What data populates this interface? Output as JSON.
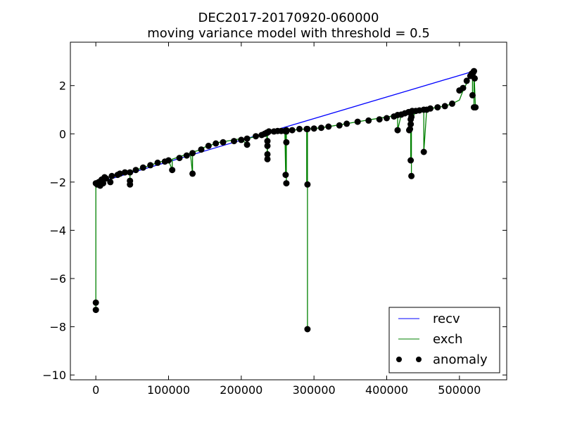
{
  "chart_data": {
    "type": "line",
    "title": "DEC2017-20170920-060000",
    "subtitle": "moving variance model with threshold = 0.5",
    "xlim": [
      -35000,
      565000
    ],
    "ylim": [
      -10.2,
      3.8
    ],
    "x_ticks": [
      0,
      100000,
      200000,
      300000,
      400000,
      500000
    ],
    "x_tick_labels": [
      "0",
      "100000",
      "200000",
      "300000",
      "400000",
      "500000"
    ],
    "y_ticks": [
      2,
      0,
      -2,
      -4,
      -6,
      -8,
      -10
    ],
    "y_tick_labels": [
      "2",
      "0",
      "−2",
      "−4",
      "−6",
      "−8",
      "−10"
    ],
    "grid": false,
    "legend_position": "lower-right",
    "series": [
      {
        "name": "recv",
        "style": "line",
        "color": "#0000ff",
        "x": [
          0,
          520000
        ],
        "y": [
          -2.05,
          2.6
        ]
      },
      {
        "name": "exch",
        "style": "line",
        "color": "#008000",
        "x": [
          0,
          0,
          0,
          0,
          5000,
          5000,
          10000,
          10000,
          15000,
          18000,
          20000,
          20000,
          25000,
          30000,
          35000,
          40000,
          47000,
          47000,
          47000,
          50000,
          60000,
          70000,
          80000,
          90000,
          100000,
          105000,
          105000,
          110000,
          120000,
          130000,
          133000,
          133000,
          140000,
          150000,
          160000,
          170000,
          180000,
          190000,
          200000,
          208000,
          208000,
          215000,
          225000,
          230000,
          235000,
          236000,
          236000,
          236000,
          240000,
          250000,
          255000,
          260000,
          261000,
          261000,
          262000,
          262000,
          262000,
          270000,
          280000,
          290000,
          290000,
          290000,
          291000,
          291000,
          291000,
          300000,
          310000,
          320000,
          330000,
          340000,
          350000,
          360000,
          370000,
          380000,
          390000,
          400000,
          410000,
          415000,
          415000,
          420000,
          425000,
          430000,
          431000,
          431000,
          433000,
          433000,
          433000,
          434000,
          434000,
          434000,
          435000,
          435000,
          440000,
          450000,
          451000,
          451000,
          455000,
          460000,
          470000,
          480000,
          490000,
          500000,
          505000,
          510000,
          515000,
          518000,
          518000,
          518000,
          520000,
          520000,
          520000,
          522000
        ],
        "y": [
          -2.05,
          -7.3,
          -7.0,
          -2.05,
          -2.0,
          -2.1,
          -1.9,
          -2.1,
          -1.85,
          -1.9,
          -2.0,
          -1.75,
          -1.7,
          -1.7,
          -1.65,
          -1.6,
          -1.6,
          -2.1,
          -1.6,
          -1.55,
          -1.45,
          -1.35,
          -1.25,
          -1.15,
          -1.1,
          -1.5,
          -1.05,
          -1.0,
          -0.9,
          -0.8,
          -1.65,
          -0.75,
          -0.7,
          -0.55,
          -0.45,
          -0.35,
          -0.3,
          -0.25,
          -0.2,
          -0.45,
          -0.2,
          -0.15,
          -0.05,
          0.0,
          0.05,
          -1.05,
          -0.85,
          0.05,
          0.1,
          0.1,
          0.12,
          0.12,
          -1.7,
          0.12,
          -2.05,
          -0.35,
          0.12,
          0.15,
          0.18,
          0.2,
          -2.1,
          0.2,
          0.2,
          -8.1,
          0.2,
          0.22,
          0.25,
          0.3,
          0.35,
          0.4,
          0.45,
          0.5,
          0.55,
          0.6,
          0.65,
          0.7,
          0.75,
          0.8,
          0.15,
          0.8,
          0.85,
          0.9,
          0.9,
          0.15,
          0.9,
          -1.1,
          0.9,
          0.9,
          -1.75,
          0.9,
          0.92,
          0.6,
          0.95,
          1.0,
          1.0,
          -0.75,
          1.0,
          1.05,
          1.1,
          1.15,
          1.25,
          1.4,
          1.8,
          2.1,
          2.4,
          2.5,
          1.6,
          2.5,
          2.6,
          1.1,
          2.6,
          1.1
        ]
      },
      {
        "name": "anomaly",
        "style": "markers",
        "color": "#000000",
        "x": [
          0,
          0,
          0,
          2000,
          4000,
          6000,
          8000,
          10000,
          12000,
          14000,
          20000,
          22000,
          30000,
          33000,
          40000,
          47000,
          47000,
          47000,
          55000,
          65000,
          75000,
          85000,
          95000,
          100000,
          105000,
          115000,
          125000,
          133000,
          133000,
          145000,
          155000,
          165000,
          175000,
          190000,
          200000,
          208000,
          208000,
          220000,
          228000,
          232000,
          235000,
          236000,
          236000,
          236000,
          236000,
          236000,
          238000,
          245000,
          250000,
          255000,
          260000,
          261000,
          261000,
          262000,
          262000,
          262000,
          262000,
          270000,
          280000,
          290000,
          291000,
          291000,
          291000,
          300000,
          310000,
          320000,
          335000,
          345000,
          360000,
          375000,
          390000,
          400000,
          410000,
          415000,
          415000,
          420000,
          425000,
          430000,
          431000,
          432000,
          433000,
          433000,
          433000,
          433000,
          434000,
          434000,
          434000,
          435000,
          440000,
          445000,
          451000,
          451000,
          455000,
          460000,
          470000,
          480000,
          490000,
          500000,
          505000,
          510000,
          515000,
          517000,
          518000,
          518000,
          519000,
          520000,
          520000,
          521000,
          522000
        ],
        "y": [
          -7.3,
          -7.0,
          -2.05,
          -2.1,
          -2.0,
          -2.15,
          -1.9,
          -2.05,
          -1.8,
          -1.85,
          -2.0,
          -1.75,
          -1.7,
          -1.65,
          -1.6,
          -2.1,
          -1.95,
          -1.6,
          -1.5,
          -1.4,
          -1.3,
          -1.2,
          -1.15,
          -1.1,
          -1.5,
          -1.0,
          -0.9,
          -1.65,
          -0.8,
          -0.65,
          -0.5,
          -0.4,
          -0.35,
          -0.3,
          -0.25,
          -0.45,
          -0.2,
          -0.1,
          -0.05,
          0.0,
          0.05,
          -1.05,
          -0.85,
          -0.5,
          -0.3,
          0.05,
          0.1,
          0.1,
          0.12,
          0.12,
          0.12,
          -1.7,
          0.12,
          -2.05,
          -0.35,
          0.1,
          0.15,
          0.15,
          0.2,
          0.2,
          -8.1,
          -2.1,
          0.2,
          0.22,
          0.25,
          0.3,
          0.35,
          0.42,
          0.5,
          0.55,
          0.6,
          0.65,
          0.72,
          0.15,
          0.78,
          0.8,
          0.85,
          0.9,
          0.15,
          0.2,
          -1.1,
          0.4,
          0.6,
          0.9,
          -1.75,
          0.7,
          0.9,
          0.95,
          0.95,
          0.97,
          -0.75,
          1.0,
          1.0,
          1.05,
          1.1,
          1.15,
          1.25,
          1.8,
          1.9,
          2.2,
          2.4,
          2.5,
          1.6,
          2.4,
          2.55,
          1.1,
          2.6,
          2.3,
          1.1
        ]
      }
    ]
  }
}
